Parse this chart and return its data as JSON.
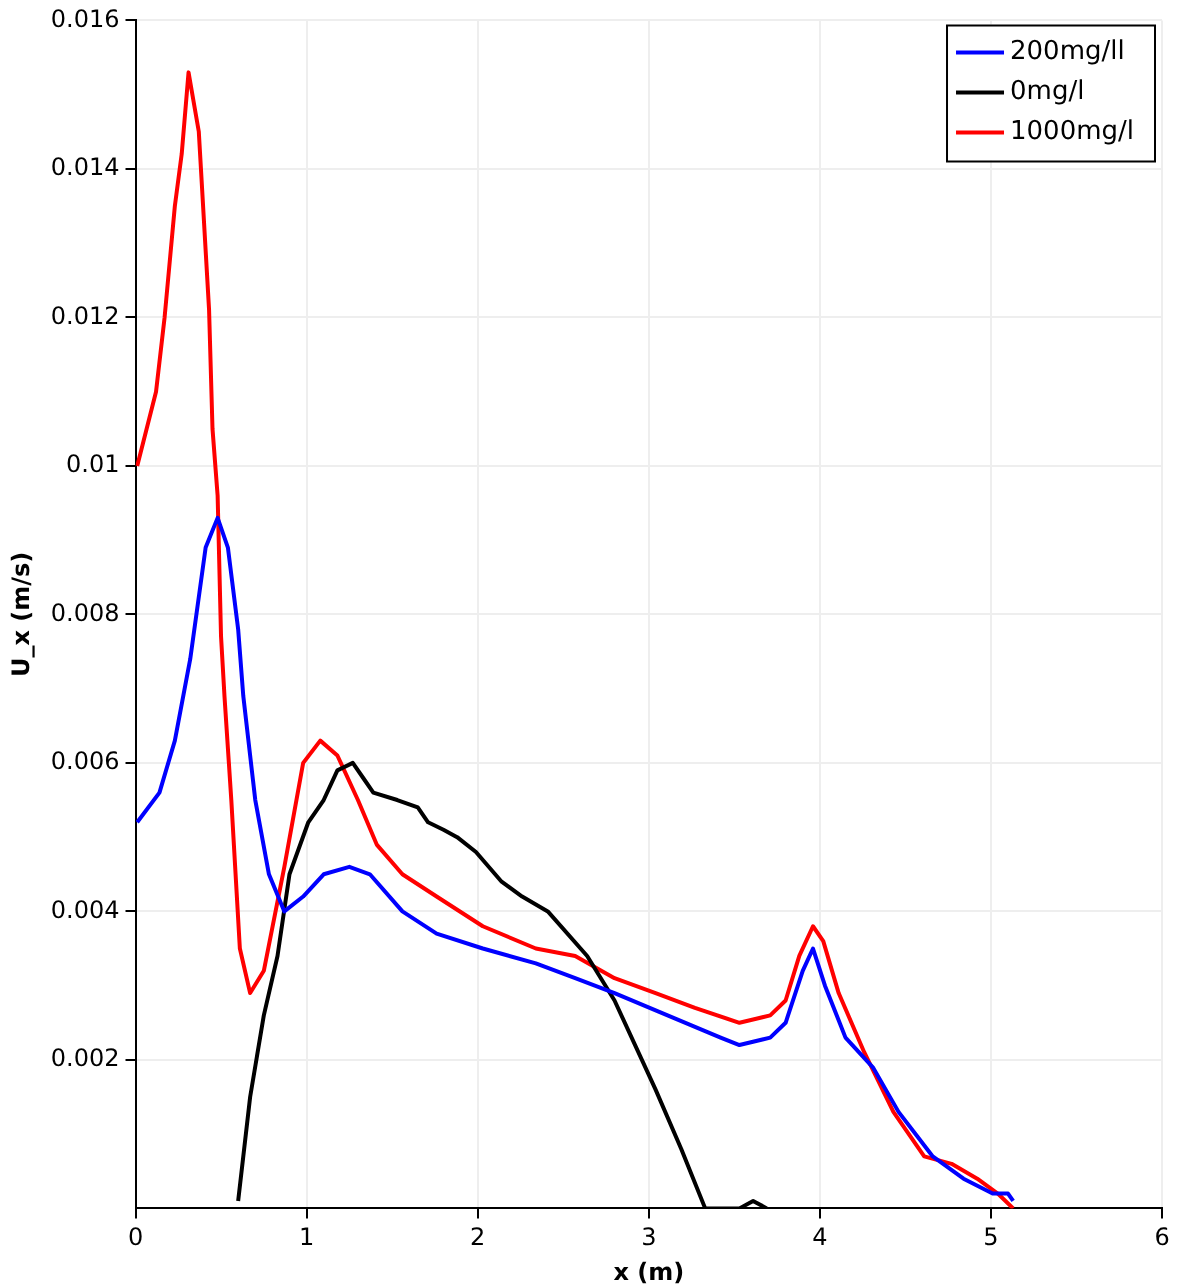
{
  "chart_data": {
    "type": "line",
    "xlabel": "x (m)",
    "ylabel": "U_x (m/s)",
    "xlim": [
      0,
      6
    ],
    "xticks": [
      0,
      1,
      2,
      3,
      4,
      5,
      6
    ],
    "ylim": [
      0,
      0.016
    ],
    "yticks": [
      0.002,
      0.004,
      0.006,
      0.008,
      {
        "value": 0.01,
        "label": "0.01"
      },
      0.012,
      0.014,
      0.016
    ],
    "grid": true,
    "legend": "top right",
    "marker": "none",
    "line_style": "solid",
    "series": [
      {
        "name": "200mg/ll",
        "color": "#0000ff",
        "x": [
          0.01,
          0.14,
          0.23,
          0.32,
          0.41,
          0.48,
          0.54,
          0.6,
          0.63,
          0.7,
          0.78,
          0.87,
          0.98,
          1.1,
          1.25,
          1.37,
          1.56,
          1.76,
          2.03,
          2.34,
          2.57,
          2.8,
          3.11,
          3.42,
          3.53,
          3.71,
          3.8,
          3.9,
          3.96,
          4.03,
          4.15,
          4.31,
          4.46,
          4.66,
          4.84,
          5.01,
          5.1,
          5.13
        ],
        "values": [
          0.0052,
          0.0056,
          0.0063,
          0.0074,
          0.0089,
          0.0093,
          0.0089,
          0.0078,
          0.0069,
          0.0055,
          0.0045,
          0.004,
          0.0042,
          0.0045,
          0.0046,
          0.0045,
          0.004,
          0.0037,
          0.0035,
          0.0033,
          0.0031,
          0.0029,
          0.0026,
          0.0023,
          0.0022,
          0.0023,
          0.0025,
          0.0032,
          0.0035,
          0.003,
          0.0023,
          0.0019,
          0.0013,
          0.0007,
          0.0004,
          0.0002,
          0.0002,
          0.0001
        ]
      },
      {
        "name": "0mg/l",
        "color": "#000000",
        "x": [
          0.6,
          0.67,
          0.75,
          0.83,
          0.9,
          1.01,
          1.1,
          1.18,
          1.27,
          1.33,
          1.39,
          1.53,
          1.65,
          1.71,
          1.8,
          1.88,
          1.99,
          2.14,
          2.26,
          2.41,
          2.64,
          2.8,
          3.04,
          3.19,
          3.33,
          3.53,
          3.61,
          3.69
        ],
        "values": [
          0.0001,
          0.0015,
          0.0026,
          0.0034,
          0.0045,
          0.0052,
          0.0055,
          0.0059,
          0.006,
          0.0058,
          0.0056,
          0.0055,
          0.0054,
          0.0052,
          0.0051,
          0.005,
          0.0048,
          0.0044,
          0.0042,
          0.004,
          0.0034,
          0.0028,
          0.0016,
          0.0008,
          0,
          0,
          0.0001,
          0
        ]
      },
      {
        "name": "1000mg/l",
        "color": "#ff0000",
        "x": [
          0.01,
          0.12,
          0.17,
          0.23,
          0.27,
          0.31,
          0.37,
          0.39,
          0.43,
          0.45,
          0.48,
          0.5,
          0.52,
          0.56,
          0.61,
          0.67,
          0.75,
          0.87,
          0.98,
          1.08,
          1.18,
          1.3,
          1.41,
          1.56,
          1.76,
          2.03,
          2.34,
          2.57,
          2.8,
          3.04,
          3.27,
          3.53,
          3.71,
          3.8,
          3.88,
          3.96,
          4.02,
          4.11,
          4.26,
          4.43,
          4.61,
          4.77,
          4.92,
          5.04,
          5.13
        ],
        "values": [
          0.01,
          0.011,
          0.012,
          0.0135,
          0.0142,
          0.0153,
          0.0145,
          0.0137,
          0.0121,
          0.0105,
          0.0096,
          0.0077,
          0.0069,
          0.0055,
          0.0035,
          0.0029,
          0.0032,
          0.0046,
          0.006,
          0.0063,
          0.0061,
          0.0055,
          0.0049,
          0.0045,
          0.0042,
          0.0038,
          0.0035,
          0.0034,
          0.0031,
          0.0029,
          0.0027,
          0.0025,
          0.0026,
          0.0028,
          0.0034,
          0.0038,
          0.0036,
          0.0029,
          0.0021,
          0.0013,
          0.0007,
          0.0006,
          0.0004,
          0.0002,
          0
        ]
      }
    ]
  }
}
